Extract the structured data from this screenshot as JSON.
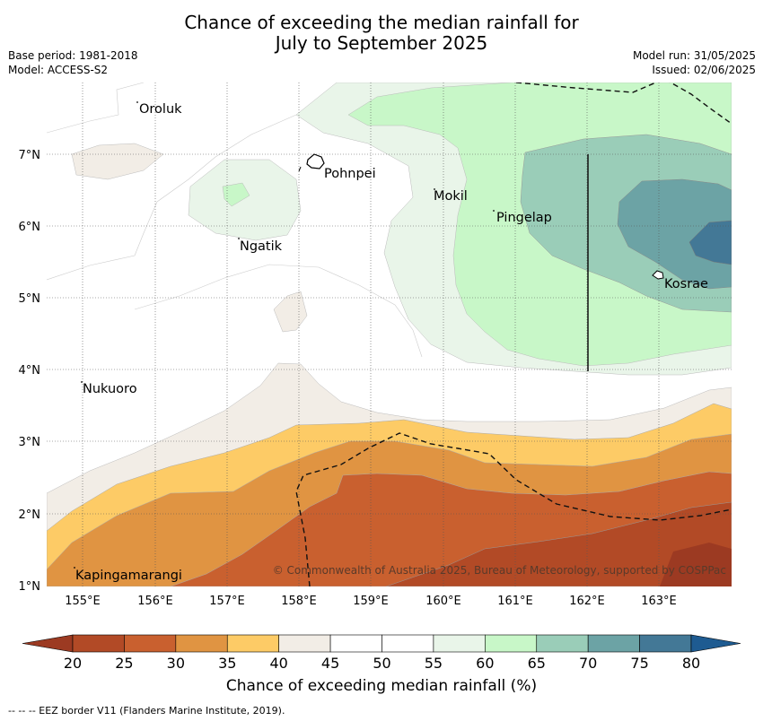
{
  "header": {
    "title_line1": "Chance of exceeding the median rainfall for",
    "title_line2": "July to September 2025",
    "base_period": "Base period: 1981-2018",
    "model": "Model: ACCESS-S2",
    "model_run": "Model run: 31/05/2025",
    "issued": "Issued: 02/06/2025"
  },
  "map": {
    "lon_ticks": [
      "155°E",
      "156°E",
      "157°E",
      "158°E",
      "159°E",
      "160°E",
      "161°E",
      "162°E",
      "163°E"
    ],
    "lat_ticks": [
      "7°N",
      "6°N",
      "5°N",
      "4°N",
      "3°N",
      "2°N",
      "1°N"
    ],
    "places": [
      {
        "name": "Oroluk"
      },
      {
        "name": "Pohnpei"
      },
      {
        "name": "Mokil"
      },
      {
        "name": "Pingelap"
      },
      {
        "name": "Ngatik"
      },
      {
        "name": "Kosrae"
      },
      {
        "name": "Nukuoro"
      },
      {
        "name": "Kapingamarangi"
      }
    ],
    "copyright": "© Commonwealth of Australia 2025, Bureau of Meteorology, supported by COSPPac"
  },
  "colorbar": {
    "ticks": [
      "20",
      "25",
      "30",
      "35",
      "40",
      "45",
      "50",
      "55",
      "60",
      "65",
      "70",
      "75",
      "80"
    ],
    "colors": [
      "#b24a26",
      "#c9602f",
      "#e09442",
      "#fdcb66",
      "#f2ede6",
      "#ffffff",
      "#ffffff",
      "#e9f5e9",
      "#c8f7c8",
      "#9acdb8",
      "#6ca3a5",
      "#437896",
      "#1e5b91"
    ],
    "label": "Chance of exceeding median rainfall (%)"
  },
  "footnote": "--  --  -- EEZ border V11 (Flanders Marine Institute, 2019)."
}
